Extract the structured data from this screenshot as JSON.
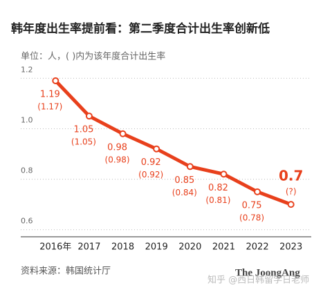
{
  "chart_data": {
    "type": "line",
    "title": "韩年度出生率提前看：第二季度合计出生率创新低",
    "subtitle": "单位：人，( )内为该年度合计出生率",
    "categories": [
      "2016年",
      "2017",
      "2018",
      "2019",
      "2020",
      "2021",
      "2022",
      "2023"
    ],
    "values": [
      1.19,
      1.05,
      0.98,
      0.92,
      0.85,
      0.82,
      0.75,
      0.7
    ],
    "annual_labels": [
      "(1.17)",
      "(1.05)",
      "(0.98)",
      "(0.92)",
      "(0.84)",
      "(0.81)",
      "(0.78)",
      "(?)"
    ],
    "color": "#e8401c",
    "ylim": [
      0.58,
      1.22
    ],
    "yticks": [
      0.6,
      0.8,
      {
        "value": 1,
        "label": "1.0"
      },
      1.2
    ],
    "grid": true,
    "source": "资料来源：韩国统计厅",
    "brand": "The JoongAng",
    "watermark": "知乎 @西日韩留学日老师"
  }
}
